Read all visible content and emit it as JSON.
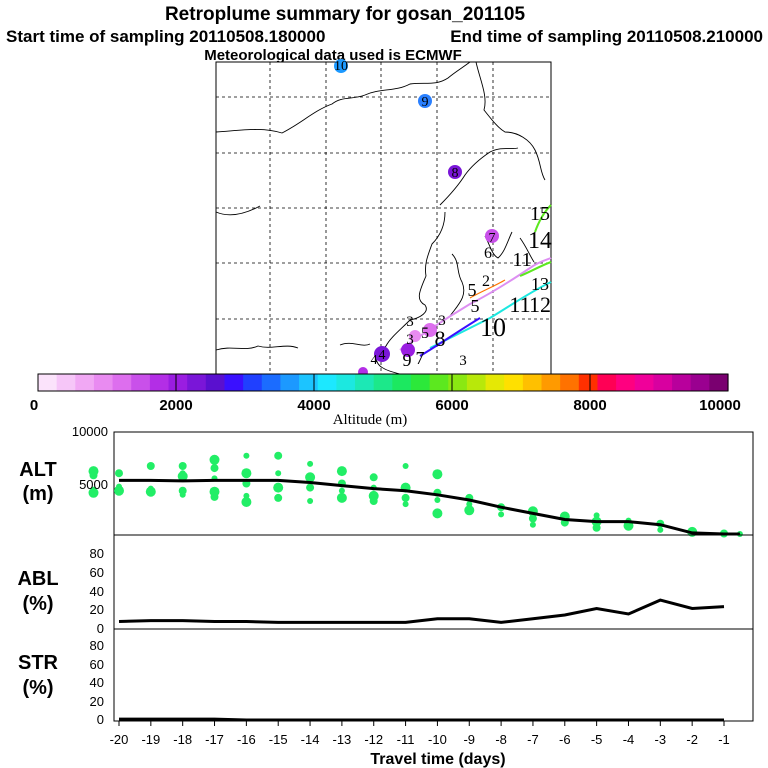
{
  "title": {
    "line1": "Retroplume summary for gosan_201105",
    "line2_start": "Start time of sampling 20110508.180000",
    "line2_end": "End time of sampling 20110508.210000",
    "line3": "Meteorological data used is ECMWF"
  },
  "map": {
    "markers": [
      "1",
      "2",
      "3",
      "4",
      "5",
      "6",
      "7",
      "8",
      "9",
      "10",
      "11",
      "12",
      "13",
      "14",
      "15"
    ],
    "upper_markers": [
      "6",
      "7",
      "8",
      "9",
      "10"
    ]
  },
  "colorbar": {
    "label": "Altitude (m)",
    "ticks": [
      "0",
      "2000",
      "4000",
      "6000",
      "8000",
      "10000"
    ],
    "colors": [
      "#fbe3fb",
      "#f6c6f8",
      "#f1a8f4",
      "#e98bf1",
      "#dd6eee",
      "#c950ea",
      "#b32ee6",
      "#9a1de1",
      "#7a16d8",
      "#5a10cf",
      "#3a10ff",
      "#2040ff",
      "#1b6cff",
      "#1c99ff",
      "#1cc4ff",
      "#1ce8ff",
      "#1ce8e0",
      "#1ce8b5",
      "#1ce88a",
      "#1ce860",
      "#2ce83a",
      "#5ce81f",
      "#8ae812",
      "#b8e80a",
      "#e5e805",
      "#ffe000",
      "#ffc000",
      "#ff9a00",
      "#ff7200",
      "#ff3000",
      "#ff0055",
      "#ff0080",
      "#f0009a",
      "#d800a0",
      "#b8009c",
      "#9a0090",
      "#7a0070"
    ]
  },
  "chart_data": [
    {
      "type": "line",
      "name": "ALT",
      "ylabel": "ALT\n(m)",
      "ylim": [
        0,
        10000
      ],
      "yticks": [
        "10000",
        "5000"
      ],
      "x": [
        -20,
        -19,
        -18,
        -17,
        -16,
        -15,
        -14,
        -13,
        -12,
        -11,
        -10,
        -9,
        -8,
        -7,
        -6,
        -5,
        -4,
        -3,
        -2,
        -1,
        -0.5
      ],
      "series": [
        {
          "name": "median altitude",
          "values": [
            5300,
            5300,
            5250,
            5300,
            5300,
            5300,
            5100,
            4800,
            4500,
            4300,
            3900,
            3400,
            2700,
            2100,
            1500,
            1300,
            1300,
            1000,
            200,
            100,
            100
          ]
        }
      ],
      "scatter": {
        "name": "particle altitudes",
        "points": [
          [
            -20.8,
            6200
          ],
          [
            -20.8,
            5800
          ],
          [
            -20.8,
            4400
          ],
          [
            -20.8,
            4100
          ],
          [
            -20,
            6000
          ],
          [
            -20,
            4700
          ],
          [
            -20,
            4300
          ],
          [
            -19,
            6700
          ],
          [
            -19,
            4500
          ],
          [
            -19,
            4200
          ],
          [
            -18,
            6700
          ],
          [
            -18,
            6000
          ],
          [
            -18,
            5700
          ],
          [
            -18,
            4300
          ],
          [
            -18,
            3900
          ],
          [
            -17,
            7300
          ],
          [
            -17,
            6500
          ],
          [
            -17,
            5500
          ],
          [
            -17,
            4200
          ],
          [
            -17,
            3700
          ],
          [
            -16,
            7700
          ],
          [
            -16,
            6000
          ],
          [
            -16,
            5000
          ],
          [
            -16,
            3800
          ],
          [
            -16,
            3200
          ],
          [
            -15,
            7700
          ],
          [
            -15,
            6000
          ],
          [
            -15,
            4600
          ],
          [
            -15,
            3600
          ],
          [
            -14,
            6900
          ],
          [
            -14,
            5600
          ],
          [
            -14,
            4600
          ],
          [
            -14,
            3300
          ],
          [
            -13,
            6200
          ],
          [
            -13,
            5000
          ],
          [
            -13,
            4300
          ],
          [
            -13,
            3600
          ],
          [
            -12,
            5600
          ],
          [
            -12,
            4600
          ],
          [
            -12,
            3800
          ],
          [
            -12,
            3300
          ],
          [
            -11,
            6700
          ],
          [
            -11,
            4600
          ],
          [
            -11,
            3600
          ],
          [
            -11,
            3000
          ],
          [
            -10,
            5900
          ],
          [
            -10,
            4100
          ],
          [
            -10,
            3400
          ],
          [
            -10,
            2100
          ],
          [
            -9,
            3600
          ],
          [
            -9,
            3000
          ],
          [
            -9,
            2400
          ],
          [
            -8,
            2700
          ],
          [
            -8,
            2000
          ],
          [
            -7,
            2300
          ],
          [
            -7,
            1600
          ],
          [
            -7,
            1000
          ],
          [
            -6,
            1800
          ],
          [
            -6,
            1200
          ],
          [
            -5,
            1900
          ],
          [
            -5,
            1300
          ],
          [
            -5,
            700
          ],
          [
            -4,
            1400
          ],
          [
            -4,
            900
          ],
          [
            -3,
            1100
          ],
          [
            -3,
            500
          ],
          [
            -2,
            300
          ],
          [
            -1,
            150
          ],
          [
            -0.5,
            100
          ]
        ]
      }
    },
    {
      "type": "line",
      "name": "ABL",
      "ylabel": "ABL\n(%)",
      "ylim": [
        0,
        100
      ],
      "yticks": [
        "0",
        "20",
        "40",
        "60",
        "80"
      ],
      "x": [
        -20,
        -19,
        -18,
        -17,
        -16,
        -15,
        -14,
        -13,
        -12,
        -11,
        -10,
        -9,
        -8,
        -7,
        -6,
        -5,
        -4,
        -3,
        -2,
        -1
      ],
      "series": [
        {
          "name": "ABL fraction",
          "values": [
            7,
            8,
            8,
            7,
            7,
            6,
            6,
            6,
            6,
            6,
            10,
            10,
            6,
            10,
            14,
            21,
            15,
            30,
            21,
            23
          ]
        }
      ]
    },
    {
      "type": "line",
      "name": "STR",
      "ylabel": "STR\n(%)",
      "ylim": [
        0,
        100
      ],
      "yticks": [
        "0",
        "20",
        "40",
        "60",
        "80"
      ],
      "x": [
        -20,
        -19,
        -18,
        -17,
        -16,
        -15,
        -14,
        -13,
        -12,
        -11,
        -10,
        -9,
        -8,
        -7,
        -6,
        -5,
        -4,
        -3,
        -2,
        -1
      ],
      "series": [
        {
          "name": "stratospheric fraction",
          "values": [
            1,
            1,
            1,
            1,
            0,
            0,
            0,
            0,
            0,
            0,
            0,
            0,
            0,
            0,
            0,
            0,
            0,
            0,
            0,
            0
          ]
        }
      ]
    }
  ],
  "xaxis": {
    "label": "Travel time (days)",
    "ticks": [
      "-20",
      "-19",
      "-18",
      "-17",
      "-16",
      "-15",
      "-14",
      "-13",
      "-12",
      "-11",
      "-10",
      "-9",
      "-8",
      "-7",
      "-6",
      "-5",
      "-4",
      "-3",
      "-2",
      "-1"
    ]
  },
  "labels": {
    "alt_top": "ALT",
    "alt_bottom": "(m)",
    "abl_top": "ABL",
    "abl_bottom": "(%)",
    "str_top": "STR",
    "str_bottom": "(%)"
  }
}
